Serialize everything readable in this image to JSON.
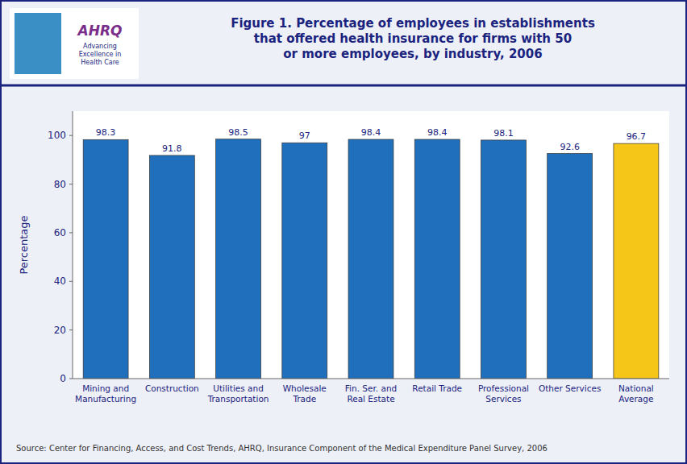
{
  "chart_data": {
    "type": "bar",
    "title": "Figure 1. Percentage of employees in establishments\nthat offered health insurance for firms with 50\nor more employees, by industry, 2006",
    "categories": [
      "Mining and\nManufacturing",
      "Construction",
      "Utilities and\nTransportation",
      "Wholesale\nTrade",
      "Fin. Ser. and\nReal Estate",
      "Retail Trade",
      "Professional\nServices",
      "Other Services",
      "National\nAverage"
    ],
    "values": [
      98.3,
      91.8,
      98.5,
      97.0,
      98.4,
      98.4,
      98.1,
      92.6,
      96.7
    ],
    "colors": [
      "#1f6fbd",
      "#1f6fbd",
      "#1f6fbd",
      "#1f6fbd",
      "#1f6fbd",
      "#1f6fbd",
      "#1f6fbd",
      "#1f6fbd",
      "#f5c518"
    ],
    "ylabel": "Percentage",
    "ylim": [
      0,
      110
    ],
    "yticks": [
      0,
      20,
      40,
      60,
      80,
      100
    ],
    "grid": false,
    "data_labels": true,
    "annotations": [
      "Source: Center for Financing, Access, and Cost Trends, AHRQ, Insurance Component of the Medical Expenditure Panel Survey, 2006",
      "AHRQ",
      "Advancing\nExcellence in\nHealth Care"
    ]
  }
}
